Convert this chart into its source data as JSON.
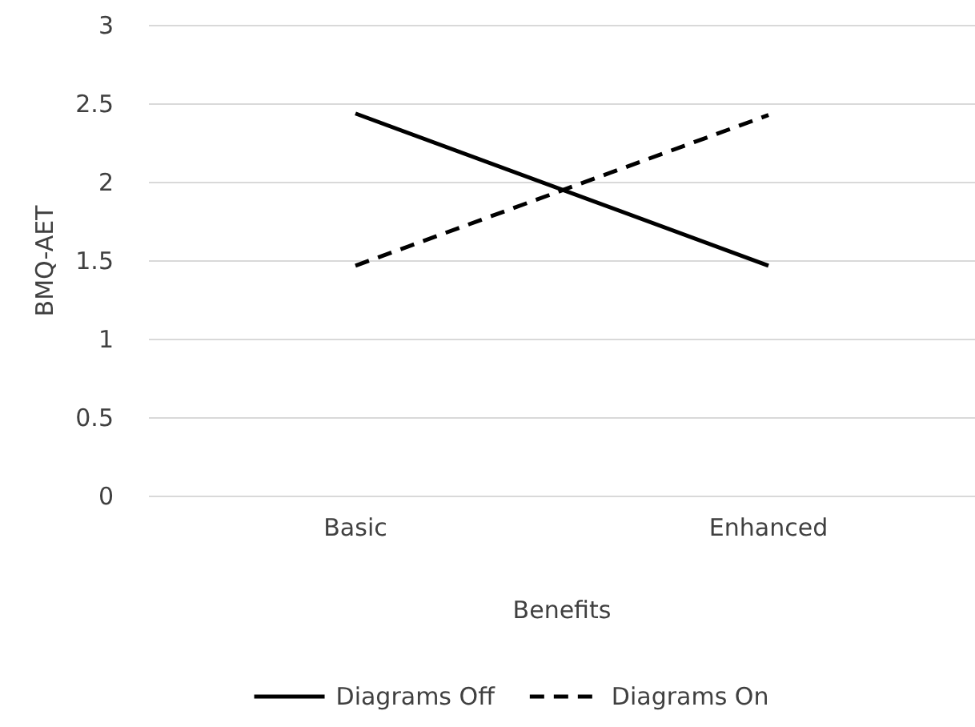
{
  "chart_data": {
    "type": "line",
    "xlabel": "Benefits",
    "ylabel": "BMQ-AET",
    "categories": [
      "Basic",
      "Enhanced"
    ],
    "series": [
      {
        "name": "Diagrams Off",
        "color": "#000000",
        "values": [
          2.44,
          1.47
        ],
        "line_style": "solid"
      },
      {
        "name": "Diagrams On",
        "color": "#000000",
        "values": [
          1.47,
          2.43
        ],
        "line_style": "dashed"
      }
    ],
    "ylim": [
      0,
      3
    ],
    "yticks": [
      0,
      0.5,
      1,
      1.5,
      2,
      2.5,
      3
    ],
    "grid": "y",
    "legend": "bottom",
    "marker": "none"
  }
}
